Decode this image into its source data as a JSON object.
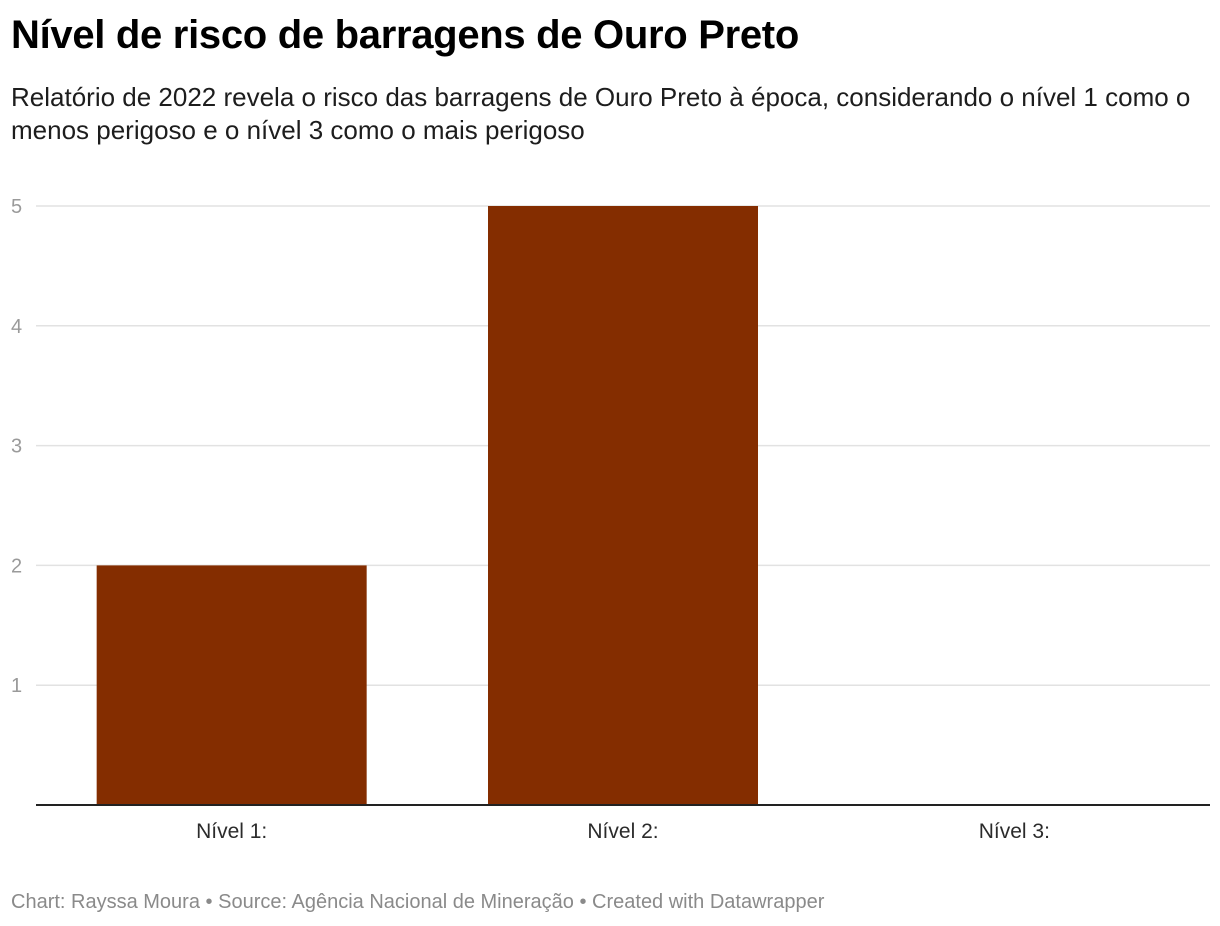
{
  "header": {
    "title": "Nível de risco de barragens de Ouro Preto",
    "subtitle": "Relatório de 2022 revela o risco das barragens de Ouro Preto à época, considerando o nível 1 como o menos perigoso e o nível 3 como o mais perigoso"
  },
  "footer": {
    "chart_credit": "Chart: Rayssa Moura",
    "separator": "•",
    "source": "Source: Agência Nacional de Mineração",
    "created_with": "Created with Datawrapper"
  },
  "colors": {
    "bar": "#842d00",
    "grid": "#e2e2e2",
    "axis": "#222222"
  },
  "chart_data": {
    "type": "bar",
    "title": "Nível de risco de barragens de Ouro Preto",
    "subtitle": "Relatório de 2022 revela o risco das barragens de Ouro Preto à época, considerando o nível 1 como o menos perigoso e o nível 3 como o mais perigoso",
    "categories": [
      "Nível 1:",
      "Nível 2:",
      "Nível 3:"
    ],
    "values": [
      2,
      5,
      0
    ],
    "xlabel": "",
    "ylabel": "",
    "ylim": [
      0,
      5
    ],
    "yticks": [
      1,
      2,
      3,
      4,
      5
    ],
    "grid": true,
    "legend": "none"
  }
}
